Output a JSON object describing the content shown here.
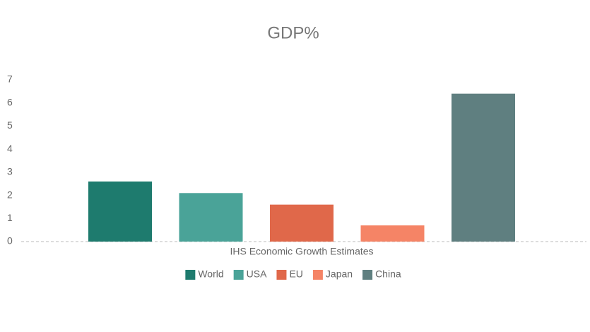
{
  "chart_data": {
    "type": "bar",
    "title": "GDP%",
    "categories": [
      "IHS Economic Growth Estimates"
    ],
    "series": [
      {
        "name": "World",
        "color": "#1e7b6e",
        "values": [
          2.6
        ]
      },
      {
        "name": "USA",
        "color": "#4aa398",
        "values": [
          2.1
        ]
      },
      {
        "name": "EU",
        "color": "#e0684a",
        "values": [
          1.6
        ]
      },
      {
        "name": "Japan",
        "color": "#f58466",
        "values": [
          0.7
        ]
      },
      {
        "name": "China",
        "color": "#5f7f80",
        "values": [
          6.4
        ]
      }
    ],
    "ylim": [
      0,
      7
    ],
    "yticks": [
      0,
      1,
      2,
      3,
      4,
      5,
      6,
      7
    ],
    "legend": "bottom"
  }
}
